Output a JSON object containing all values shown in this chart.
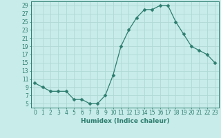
{
  "x": [
    0,
    1,
    2,
    3,
    4,
    5,
    6,
    7,
    8,
    9,
    10,
    11,
    12,
    13,
    14,
    15,
    16,
    17,
    18,
    19,
    20,
    21,
    22,
    23
  ],
  "y": [
    10,
    9,
    8,
    8,
    8,
    6,
    6,
    5,
    5,
    7,
    12,
    19,
    23,
    26,
    28,
    28,
    29,
    29,
    25,
    22,
    19,
    18,
    17,
    15
  ],
  "xlabel": "Humidex (Indice chaleur)",
  "xlim": [
    -0.5,
    23.5
  ],
  "ylim": [
    4,
    30
  ],
  "yticks": [
    5,
    7,
    9,
    11,
    13,
    15,
    17,
    19,
    21,
    23,
    25,
    27,
    29
  ],
  "xticks": [
    0,
    1,
    2,
    3,
    4,
    5,
    6,
    7,
    8,
    9,
    10,
    11,
    12,
    13,
    14,
    15,
    16,
    17,
    18,
    19,
    20,
    21,
    22,
    23
  ],
  "line_color": "#2d7d6e",
  "marker": "D",
  "marker_size": 2.5,
  "bg_color": "#c8ecea",
  "grid_color": "#b0d8d4",
  "label_fontsize": 6.5,
  "tick_fontsize": 5.5
}
